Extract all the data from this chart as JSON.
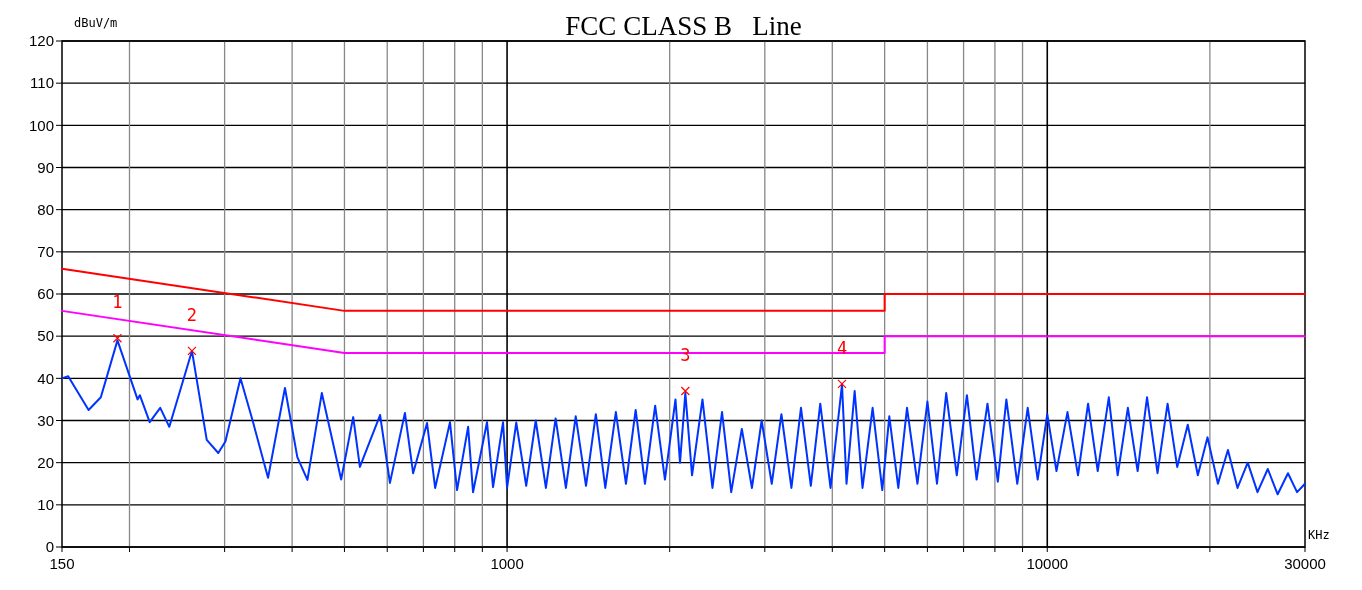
{
  "chart_data": {
    "type": "line",
    "title": "FCC CLASS B   Line",
    "xlabel": "KHz",
    "ylabel": "dBuV/m",
    "log": "x",
    "grid": true,
    "line_style": "solid",
    "annotations": [
      {
        "text": "1",
        "x": 190,
        "y": 49.5
      },
      {
        "text": "2",
        "x": 261,
        "y": 46.5
      },
      {
        "text": "3",
        "x": 2138,
        "y": 37
      },
      {
        "text": "4",
        "x": 4169,
        "y": 38.7
      }
    ],
    "xlim": [
      150,
      30000
    ],
    "ylim": [
      0,
      120
    ],
    "xticks": [
      150,
      {
        "value": 200,
        "label": null
      },
      {
        "value": 300,
        "label": null
      },
      {
        "value": 400,
        "label": null
      },
      {
        "value": 500,
        "label": null
      },
      {
        "value": 600,
        "label": null
      },
      {
        "value": 700,
        "label": null
      },
      {
        "value": 800,
        "label": null
      },
      {
        "value": 900,
        "label": null
      },
      1000,
      {
        "value": 2000,
        "label": null
      },
      {
        "value": 3000,
        "label": null
      },
      {
        "value": 4000,
        "label": null
      },
      {
        "value": 5000,
        "label": null
      },
      {
        "value": 6000,
        "label": null
      },
      {
        "value": 7000,
        "label": null
      },
      {
        "value": 8000,
        "label": null
      },
      {
        "value": 9000,
        "label": null
      },
      10000,
      {
        "value": 20000,
        "label": null
      },
      30000
    ],
    "yticks": [
      0,
      10,
      20,
      30,
      40,
      50,
      60,
      70,
      80,
      90,
      100,
      110,
      120
    ],
    "series": [
      {
        "color": "#ff0000",
        "x": [
          150,
          500,
          5000,
          5000,
          30000
        ],
        "values": [
          66,
          56,
          56,
          60,
          60
        ]
      },
      {
        "color": "#ff00ff",
        "x": [
          150,
          500,
          5000,
          5000,
          30000
        ],
        "values": [
          56,
          46,
          46,
          50,
          50
        ]
      },
      {
        "color": "#0033ff",
        "x": [
          150,
          154,
          168,
          177,
          190,
          207,
          209,
          218,
          228,
          237,
          261,
          278,
          292,
          301,
          321,
          338,
          361,
          388,
          409,
          427,
          454,
          493,
          519,
          534,
          582,
          607,
          647,
          670,
          711,
          736,
          784,
          808,
          847,
          865,
          918,
          942,
          983,
          1000,
          1040,
          1085,
          1130,
          1180,
          1230,
          1285,
          1340,
          1400,
          1460,
          1520,
          1590,
          1660,
          1730,
          1800,
          1880,
          1960,
          2050,
          2090,
          2138,
          2200,
          2300,
          2400,
          2500,
          2600,
          2720,
          2840,
          2960,
          3090,
          3220,
          3360,
          3500,
          3650,
          3800,
          3970,
          4169,
          4250,
          4400,
          4550,
          4750,
          4950,
          5100,
          5300,
          5500,
          5750,
          6000,
          6250,
          6500,
          6800,
          7100,
          7400,
          7750,
          8100,
          8400,
          8800,
          9200,
          9600,
          10000,
          10400,
          10900,
          11400,
          11900,
          12400,
          13000,
          13500,
          14100,
          14700,
          15300,
          16000,
          16700,
          17400,
          18200,
          19000,
          19800,
          20700,
          21600,
          22500,
          23500,
          24500,
          25600,
          26700,
          27900,
          29000,
          30000
        ],
        "values": [
          40,
          40.5,
          32.5,
          35.5,
          49,
          35,
          36,
          29.6,
          33,
          28.5,
          46.5,
          25.4,
          22.3,
          25,
          40,
          30,
          16.4,
          37.7,
          21.3,
          15.9,
          36.5,
          16,
          30.8,
          19,
          31.3,
          15.2,
          31.8,
          17.5,
          29.4,
          14,
          29.6,
          13.5,
          28.5,
          13,
          29.6,
          14.2,
          29.6,
          14,
          29.5,
          14.5,
          30,
          14,
          30.5,
          14,
          31,
          14.5,
          31.5,
          14,
          32,
          15,
          32.5,
          15,
          33.5,
          16,
          35,
          20,
          36.5,
          17,
          35,
          14,
          32,
          13,
          28,
          14,
          30,
          15,
          31.5,
          14,
          33,
          14.5,
          34,
          14,
          38.5,
          15,
          37,
          14,
          33,
          13.5,
          31,
          14,
          33,
          15,
          34.5,
          15,
          36.5,
          17,
          36,
          16,
          34,
          15.5,
          35,
          15,
          33,
          16,
          31.5,
          18,
          32,
          17,
          34,
          18,
          35.5,
          17,
          33,
          18,
          35.5,
          17.5,
          34,
          19,
          29,
          17,
          26,
          15,
          23,
          14,
          20,
          13,
          18.5,
          12.5,
          17.5,
          13,
          15
        ]
      },
      {
        "type": "scatter",
        "marker": "cross",
        "color": "#ff0000",
        "x": [
          190,
          261,
          2138,
          4169
        ],
        "values": [
          49.5,
          46.5,
          37,
          38.7
        ]
      }
    ]
  }
}
